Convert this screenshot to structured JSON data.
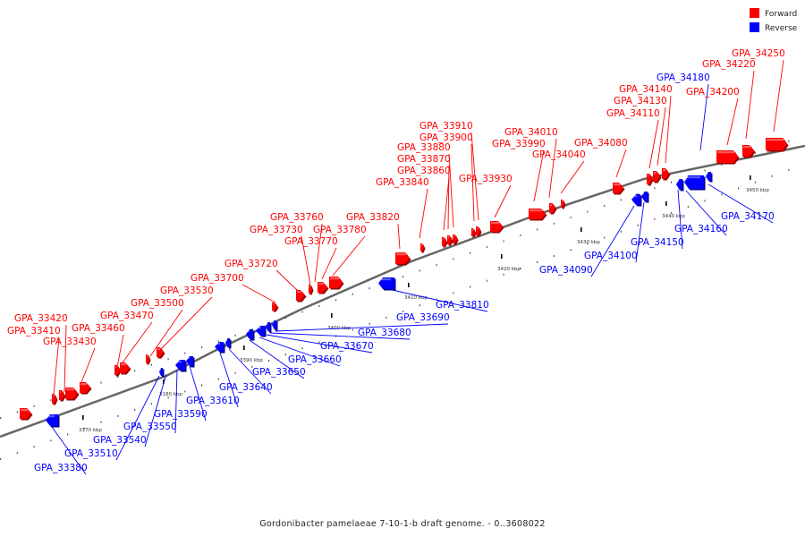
{
  "colors": {
    "forward": "#ff0000",
    "reverse": "#0000ff",
    "backbone": "#777777"
  },
  "legend": {
    "forward": "Forward",
    "reverse": "Reverse"
  },
  "caption": "Gordonibacter pamelaeae 7-10-1-b draft genome. - 0..3608022",
  "ticks": [
    "3170 kbp",
    "3180 kbp",
    "3390 kbp",
    "3400 kbp",
    "3410 kbp",
    "3420 kbp",
    "3430 kbp",
    "3440 kbp",
    "3450 kbp"
  ],
  "forward_genes": [
    "GPA_33410",
    "GPA_33420",
    "GPA_33430",
    "GPA_33460",
    "GPA_33470",
    "GPA_33500",
    "GPA_33530",
    "GPA_33700",
    "GPA_33720",
    "GPA_33730",
    "GPA_33760",
    "GPA_33770",
    "GPA_33780",
    "GPA_33820",
    "GPA_33840",
    "GPA_33860",
    "GPA_33870",
    "GPA_33880",
    "GPA_33900",
    "GPA_33910",
    "GPA_33930",
    "GPA_33990",
    "GPA_34010",
    "GPA_34040",
    "GPA_34080",
    "GPA_34110",
    "GPA_34130",
    "GPA_34140",
    "GPA_34200",
    "GPA_34220",
    "GPA_34250"
  ],
  "reverse_genes": [
    "GPA_33380",
    "GPA_33510",
    "GPA_33540",
    "GPA_33550",
    "GPA_33590",
    "GPA_33610",
    "GPA_33640",
    "GPA_33650",
    "GPA_33660",
    "GPA_33670",
    "GPA_33680",
    "GPA_33690",
    "GPA_33810",
    "GPA_34090",
    "GPA_34100",
    "GPA_34150",
    "GPA_34160",
    "GPA_34170",
    "GPA_34180"
  ]
}
